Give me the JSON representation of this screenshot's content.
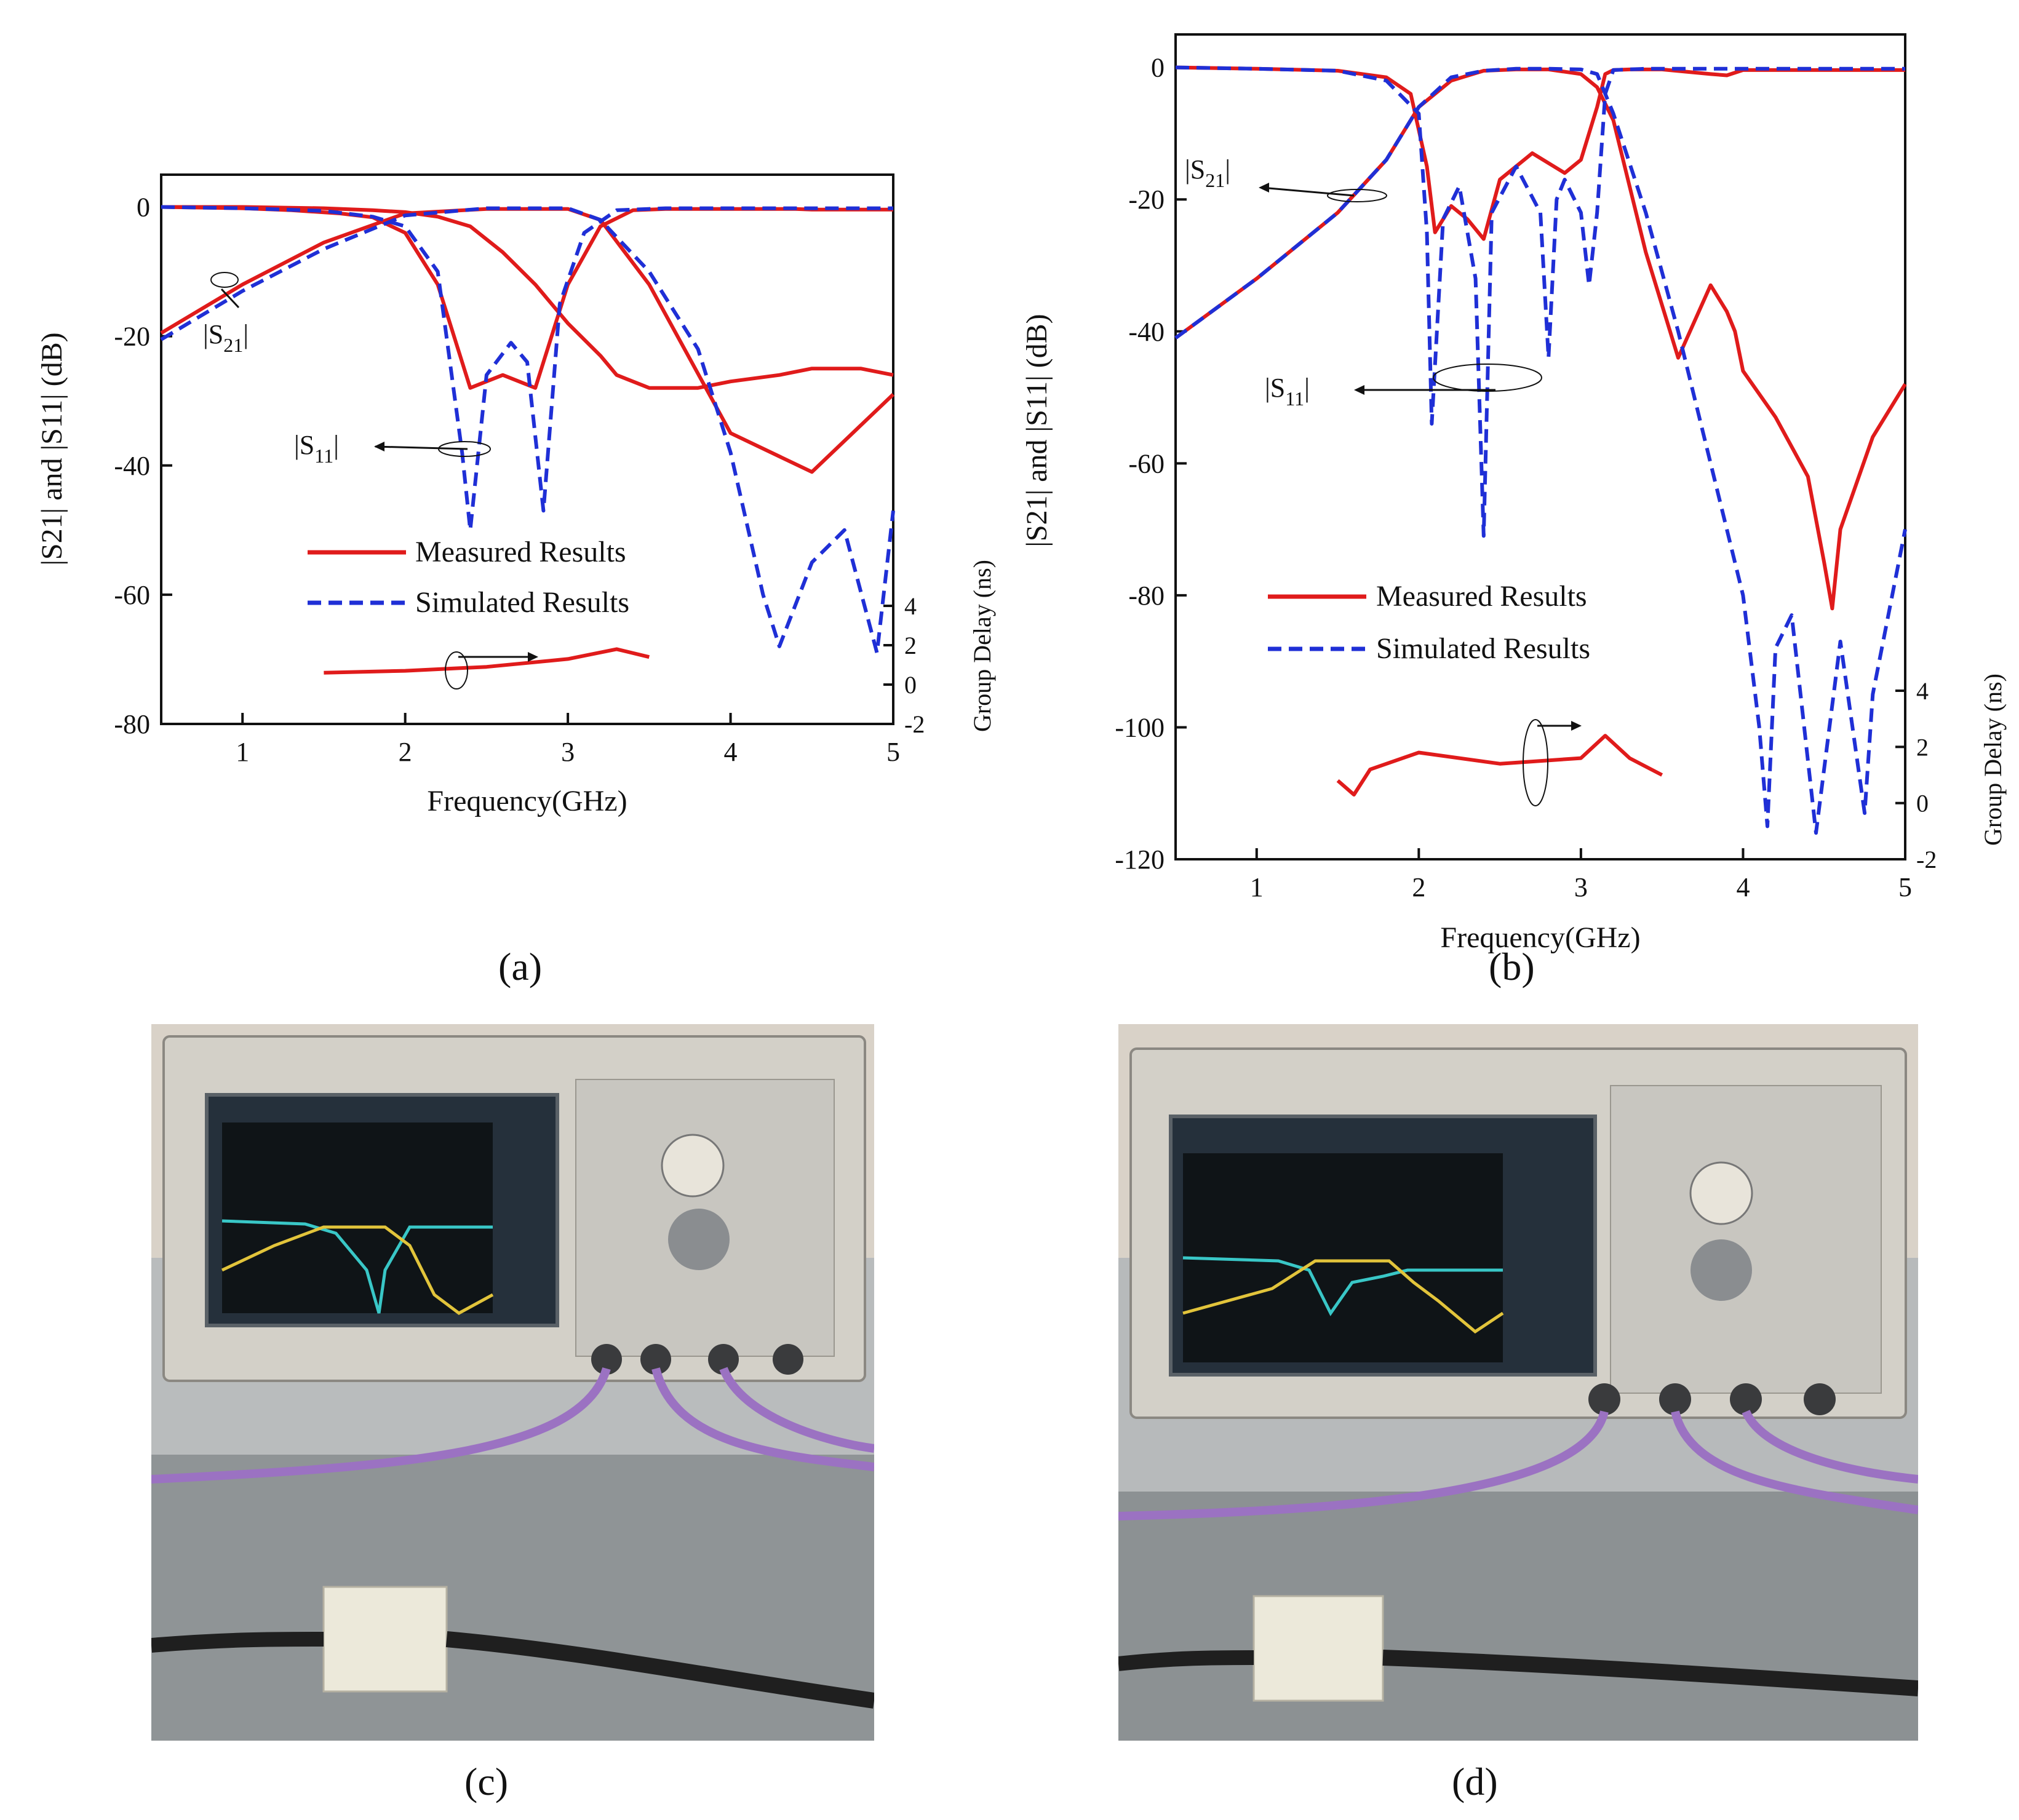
{
  "captions": {
    "a": "(a)",
    "b": "(b)",
    "c": "(c)",
    "d": "(d)"
  },
  "colors": {
    "measured": "#e01b1b",
    "simulated": "#1f2fd6",
    "axis": "#111111"
  },
  "chart_data": [
    {
      "id": "a",
      "type": "line",
      "xlabel": "Frequency(GHz)",
      "ylabel": "|S21| and |S11| (dB)",
      "y2label": "Group Delay (ns)",
      "xlim": [
        0.5,
        5
      ],
      "ylim": [
        -80,
        5
      ],
      "xticks": [
        1,
        2,
        3,
        4,
        5
      ],
      "yticks": [
        0,
        -20,
        -40,
        -60,
        -80
      ],
      "y2ticks": [
        4,
        2,
        0,
        -2
      ],
      "legend": {
        "measured": "Measured Results",
        "simulated": "Simulated Results"
      },
      "annotations": {
        "s21": "|S21|",
        "s11": "|S11|"
      },
      "series": [
        {
          "name": "Measured |S21|",
          "style": "measured",
          "x": [
            0.5,
            1.0,
            1.5,
            1.8,
            2.0,
            2.2,
            2.4,
            2.6,
            2.8,
            3.0,
            3.2,
            3.3,
            3.5,
            3.8,
            4.0,
            4.3,
            4.5,
            4.8,
            5.0
          ],
          "y": [
            0,
            0,
            -0.2,
            -0.5,
            -0.8,
            -1.5,
            -3,
            -7,
            -12,
            -18,
            -23,
            -26,
            -28,
            -28,
            -27,
            -26,
            -25,
            -25,
            -26
          ]
        },
        {
          "name": "Measured S21 passband",
          "style": "measured",
          "x": [
            0.5,
            1.0,
            1.5,
            2.0,
            2.5,
            3.0,
            3.2,
            3.5,
            4.0,
            4.5,
            5.0
          ],
          "y": [
            -19.5,
            -12,
            -5.5,
            -1,
            -0.3,
            -0.3,
            -2,
            -12,
            -35,
            -41,
            -29
          ]
        },
        {
          "name": "Measured |S11|",
          "style": "measured",
          "x": [
            0.5,
            1.0,
            1.3,
            1.6,
            1.8,
            2.0,
            2.2,
            2.4,
            2.6,
            2.8,
            3.0,
            3.2,
            3.4,
            3.6,
            3.8,
            4.0,
            4.1,
            4.2,
            4.3,
            4.4,
            4.5,
            4.6,
            4.7,
            4.8,
            5.0
          ],
          "y": [
            0,
            -0.2,
            -0.5,
            -1,
            -1.6,
            -4,
            -12,
            -28,
            -26,
            -28,
            -12,
            -3,
            -0.5,
            -0.3,
            -0.3,
            -0.3,
            -0.3,
            -0.3,
            -0.3,
            -0.3,
            -0.4,
            -0.4,
            -0.4,
            -0.4,
            -0.4
          ]
        },
        {
          "name": "Simulated |S21|",
          "style": "simulated",
          "x": [
            0.5,
            1.0,
            1.5,
            2.0,
            2.5,
            3.0,
            3.2,
            3.5,
            3.8,
            4.0,
            4.2,
            4.3,
            4.5,
            4.7,
            4.9,
            5.0
          ],
          "y": [
            -20.5,
            -13,
            -6.5,
            -1.3,
            -0.2,
            -0.2,
            -2,
            -10,
            -22,
            -38,
            -60,
            -68,
            -55,
            -50,
            -69,
            -47
          ]
        },
        {
          "name": "Simulated |S11|",
          "style": "simulated",
          "x": [
            0.5,
            1.0,
            1.5,
            1.8,
            2.0,
            2.2,
            2.35,
            2.4,
            2.5,
            2.65,
            2.75,
            2.85,
            2.95,
            3.1,
            3.3,
            3.6,
            4.0,
            4.5,
            5.0
          ],
          "y": [
            0,
            -0.2,
            -0.6,
            -1.5,
            -3,
            -10,
            -38,
            -50,
            -26,
            -21,
            -24,
            -47,
            -15,
            -4,
            -0.5,
            -0.2,
            -0.2,
            -0.2,
            -0.2
          ]
        },
        {
          "name": "Measured Group Delay (ns)",
          "style": "measured",
          "axis": "y2",
          "x": [
            1.5,
            2.0,
            2.5,
            3.0,
            3.3,
            3.5
          ],
          "y": [
            0.6,
            0.7,
            0.9,
            1.3,
            1.8,
            1.4
          ]
        }
      ]
    },
    {
      "id": "b",
      "type": "line",
      "xlabel": "Frequency(GHz)",
      "ylabel": "|S21| and |S11| (dB)",
      "y2label": "Group Delay (ns)",
      "xlim": [
        0.5,
        5
      ],
      "ylim": [
        -120,
        5
      ],
      "xticks": [
        1,
        2,
        3,
        4,
        5
      ],
      "yticks": [
        0,
        -20,
        -40,
        -60,
        -80,
        -100,
        -120
      ],
      "y2ticks": [
        4,
        2,
        0,
        -2
      ],
      "legend": {
        "measured": "Measured Results",
        "simulated": "Simulated Results"
      },
      "annotations": {
        "s21": "|S21|",
        "s11": "|S11|"
      },
      "series": [
        {
          "name": "Measured |S21|",
          "style": "measured",
          "x": [
            0.5,
            1.0,
            1.5,
            1.8,
            2.0,
            2.1,
            2.2,
            2.4,
            2.6,
            2.8,
            3.0,
            3.1,
            3.2,
            3.4,
            3.6,
            3.8,
            3.9,
            3.95,
            4.0,
            4.2,
            4.4,
            4.5,
            4.55,
            4.6,
            4.8,
            5.0
          ],
          "y": [
            -41,
            -32,
            -22,
            -14,
            -6,
            -4,
            -2,
            -0.5,
            -0.3,
            -0.3,
            -1,
            -3,
            -8,
            -28,
            -44,
            -33,
            -37,
            -40,
            -46,
            -53,
            -62,
            -75,
            -82,
            -70,
            -56,
            -48
          ]
        },
        {
          "name": "Measured |S11|",
          "style": "measured",
          "x": [
            0.5,
            1.0,
            1.5,
            1.8,
            1.95,
            2.05,
            2.1,
            2.2,
            2.3,
            2.4,
            2.5,
            2.7,
            2.9,
            3.0,
            3.1,
            3.15,
            3.2,
            3.3,
            3.5,
            3.8,
            3.9,
            4.0,
            4.5,
            5.0
          ],
          "y": [
            0,
            -0.2,
            -0.5,
            -1.5,
            -4,
            -15,
            -25,
            -21,
            -23,
            -26,
            -17,
            -13,
            -16,
            -14,
            -6,
            -1,
            -0.4,
            -0.3,
            -0.3,
            -1,
            -1.2,
            -0.4,
            -0.4,
            -0.4
          ]
        },
        {
          "name": "Simulated |S21|",
          "style": "simulated",
          "x": [
            0.5,
            1.0,
            1.5,
            1.8,
            2.0,
            2.2,
            2.4,
            2.6,
            2.8,
            3.0,
            3.1,
            3.2,
            3.4,
            3.6,
            3.8,
            4.0,
            4.1,
            4.15,
            4.2,
            4.3,
            4.45,
            4.6,
            4.75,
            4.8,
            5.0
          ],
          "y": [
            -41,
            -32,
            -22,
            -14,
            -6,
            -1.5,
            -0.5,
            -0.2,
            -0.2,
            -0.3,
            -1,
            -7,
            -22,
            -40,
            -60,
            -80,
            -100,
            -115,
            -88,
            -83,
            -116,
            -87,
            -113,
            -95,
            -70
          ]
        },
        {
          "name": "Simulated |S11|",
          "style": "simulated",
          "x": [
            0.5,
            1.0,
            1.5,
            1.8,
            2.0,
            2.05,
            2.08,
            2.15,
            2.25,
            2.35,
            2.4,
            2.45,
            2.6,
            2.75,
            2.8,
            2.85,
            2.9,
            3.0,
            3.05,
            3.1,
            3.15,
            3.2,
            3.4,
            4.0,
            5.0
          ],
          "y": [
            0,
            -0.2,
            -0.5,
            -2,
            -7,
            -25,
            -54,
            -23,
            -18,
            -32,
            -71,
            -22,
            -15,
            -22,
            -44,
            -20,
            -17,
            -22,
            -33,
            -22,
            -4,
            -0.4,
            -0.2,
            -0.2,
            -0.2
          ]
        },
        {
          "name": "Measured Group Delay (ns)",
          "style": "measured",
          "axis": "y2",
          "x": [
            1.5,
            1.6,
            1.7,
            2.0,
            2.5,
            3.0,
            3.15,
            3.3,
            3.5
          ],
          "y": [
            0.8,
            0.3,
            1.2,
            1.8,
            1.4,
            1.6,
            2.4,
            1.6,
            1.0
          ]
        }
      ]
    }
  ]
}
